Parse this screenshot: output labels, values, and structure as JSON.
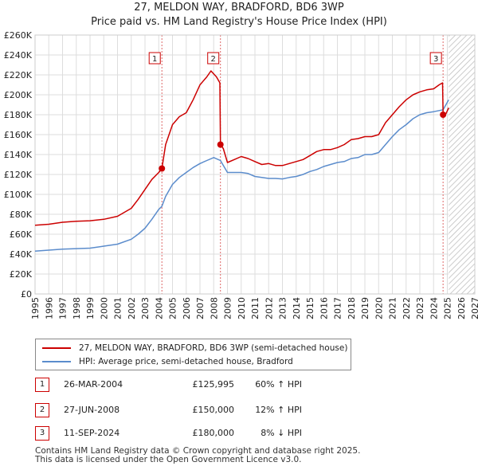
{
  "title": "27, MELDON WAY, BRADFORD, BD6 3WP",
  "subtitle": "Price paid vs. HM Land Registry's House Price Index (HPI)",
  "chart_data": {
    "type": "line",
    "x_range": [
      1995,
      2027
    ],
    "y_range": [
      0,
      260000
    ],
    "x_ticks": [
      "1995",
      "1996",
      "1997",
      "1998",
      "1999",
      "2000",
      "2001",
      "2002",
      "2003",
      "2004",
      "2005",
      "2006",
      "2007",
      "2008",
      "2009",
      "2010",
      "2011",
      "2012",
      "2013",
      "2014",
      "2015",
      "2016",
      "2017",
      "2018",
      "2019",
      "2020",
      "2021",
      "2022",
      "2023",
      "2024",
      "2025",
      "2026",
      "2027"
    ],
    "y_ticks": [
      {
        "value": 0,
        "label": "£0"
      },
      {
        "value": 20000,
        "label": "£20K"
      },
      {
        "value": 40000,
        "label": "£40K"
      },
      {
        "value": 60000,
        "label": "£60K"
      },
      {
        "value": 80000,
        "label": "£80K"
      },
      {
        "value": 100000,
        "label": "£100K"
      },
      {
        "value": 120000,
        "label": "£120K"
      },
      {
        "value": 140000,
        "label": "£140K"
      },
      {
        "value": 160000,
        "label": "£160K"
      },
      {
        "value": 180000,
        "label": "£180K"
      },
      {
        "value": 200000,
        "label": "£200K"
      },
      {
        "value": 220000,
        "label": "£220K"
      },
      {
        "value": 240000,
        "label": "£240K"
      },
      {
        "value": 260000,
        "label": "£260K"
      }
    ],
    "hatch_from": 2025.1,
    "series": [
      {
        "name": "27, MELDON WAY, BRADFORD, BD6 3WP (semi-detached house)",
        "color": "#cc0000",
        "points": [
          [
            1995.0,
            69000
          ],
          [
            1996.0,
            70000
          ],
          [
            1997.0,
            72000
          ],
          [
            1998.0,
            73000
          ],
          [
            1999.0,
            73500
          ],
          [
            2000.0,
            75000
          ],
          [
            2001.0,
            78000
          ],
          [
            2002.0,
            86000
          ],
          [
            2002.5,
            95000
          ],
          [
            2003.0,
            105000
          ],
          [
            2003.5,
            115000
          ],
          [
            2004.0,
            122000
          ],
          [
            2004.23,
            125995
          ],
          [
            2004.5,
            150000
          ],
          [
            2005.0,
            170000
          ],
          [
            2005.5,
            178000
          ],
          [
            2006.0,
            182000
          ],
          [
            2006.5,
            195000
          ],
          [
            2007.0,
            210000
          ],
          [
            2007.5,
            218000
          ],
          [
            2007.8,
            224000
          ],
          [
            2008.2,
            218000
          ],
          [
            2008.45,
            212000
          ],
          [
            2008.49,
            150000
          ],
          [
            2008.7,
            146000
          ],
          [
            2009.0,
            132000
          ],
          [
            2009.5,
            135000
          ],
          [
            2010.0,
            138000
          ],
          [
            2010.5,
            136000
          ],
          [
            2011.0,
            133000
          ],
          [
            2011.5,
            130000
          ],
          [
            2012.0,
            131000
          ],
          [
            2012.5,
            129000
          ],
          [
            2013.0,
            129000
          ],
          [
            2013.5,
            131000
          ],
          [
            2014.0,
            133000
          ],
          [
            2014.5,
            135000
          ],
          [
            2015.0,
            139000
          ],
          [
            2015.5,
            143000
          ],
          [
            2016.0,
            145000
          ],
          [
            2016.5,
            145000
          ],
          [
            2017.0,
            147000
          ],
          [
            2017.5,
            150000
          ],
          [
            2018.0,
            155000
          ],
          [
            2018.5,
            156000
          ],
          [
            2019.0,
            158000
          ],
          [
            2019.5,
            158000
          ],
          [
            2020.0,
            160000
          ],
          [
            2020.5,
            172000
          ],
          [
            2021.0,
            180000
          ],
          [
            2021.5,
            188000
          ],
          [
            2022.0,
            195000
          ],
          [
            2022.5,
            200000
          ],
          [
            2023.0,
            203000
          ],
          [
            2023.5,
            205000
          ],
          [
            2024.0,
            206000
          ],
          [
            2024.4,
            210000
          ],
          [
            2024.65,
            212000
          ],
          [
            2024.69,
            180000
          ],
          [
            2024.9,
            181000
          ],
          [
            2025.1,
            187000
          ]
        ]
      },
      {
        "name": "HPI: Average price, semi-detached house, Bradford",
        "color": "#5b8ccc",
        "points": [
          [
            1995.0,
            43000
          ],
          [
            1996.0,
            44000
          ],
          [
            1997.0,
            45000
          ],
          [
            1998.0,
            45500
          ],
          [
            1999.0,
            46000
          ],
          [
            2000.0,
            48000
          ],
          [
            2001.0,
            50000
          ],
          [
            2002.0,
            55000
          ],
          [
            2002.5,
            60000
          ],
          [
            2003.0,
            66000
          ],
          [
            2003.5,
            75000
          ],
          [
            2004.0,
            85000
          ],
          [
            2004.23,
            88000
          ],
          [
            2004.5,
            98000
          ],
          [
            2005.0,
            110000
          ],
          [
            2005.5,
            117000
          ],
          [
            2006.0,
            122000
          ],
          [
            2006.5,
            127000
          ],
          [
            2007.0,
            131000
          ],
          [
            2007.5,
            134000
          ],
          [
            2008.0,
            137000
          ],
          [
            2008.49,
            134000
          ],
          [
            2009.0,
            122000
          ],
          [
            2009.5,
            122000
          ],
          [
            2010.0,
            122000
          ],
          [
            2010.5,
            121000
          ],
          [
            2011.0,
            118000
          ],
          [
            2011.5,
            117000
          ],
          [
            2012.0,
            116000
          ],
          [
            2012.5,
            116000
          ],
          [
            2013.0,
            115500
          ],
          [
            2013.5,
            117000
          ],
          [
            2014.0,
            118000
          ],
          [
            2014.5,
            120000
          ],
          [
            2015.0,
            123000
          ],
          [
            2015.5,
            125000
          ],
          [
            2016.0,
            128000
          ],
          [
            2016.5,
            130000
          ],
          [
            2017.0,
            132000
          ],
          [
            2017.5,
            133000
          ],
          [
            2018.0,
            136000
          ],
          [
            2018.5,
            137000
          ],
          [
            2019.0,
            140000
          ],
          [
            2019.5,
            140000
          ],
          [
            2020.0,
            142000
          ],
          [
            2020.5,
            150000
          ],
          [
            2021.0,
            158000
          ],
          [
            2021.5,
            165000
          ],
          [
            2022.0,
            170000
          ],
          [
            2022.5,
            176000
          ],
          [
            2023.0,
            180000
          ],
          [
            2023.5,
            182000
          ],
          [
            2024.0,
            183000
          ],
          [
            2024.69,
            185000
          ],
          [
            2025.1,
            195000
          ]
        ]
      }
    ],
    "sales": [
      {
        "num": "1",
        "x": 2004.23,
        "price": 125995,
        "date": "26-MAR-2004",
        "price_label": "£125,995",
        "hpi": "60% ↑ HPI"
      },
      {
        "num": "2",
        "x": 2008.49,
        "price": 150000,
        "date": "27-JUN-2008",
        "price_label": "£150,000",
        "hpi": "12% ↑ HPI"
      },
      {
        "num": "3",
        "x": 2024.69,
        "price": 180000,
        "date": "11-SEP-2024",
        "price_label": "£180,000",
        "hpi": "8% ↓ HPI"
      }
    ]
  },
  "legend": {
    "property": "27, MELDON WAY, BRADFORD, BD6 3WP (semi-detached house)",
    "hpi": "HPI: Average price, semi-detached house, Bradford"
  },
  "footer": {
    "line1": "Contains HM Land Registry data © Crown copyright and database right 2025.",
    "line2": "This data is licensed under the Open Government Licence v3.0."
  }
}
